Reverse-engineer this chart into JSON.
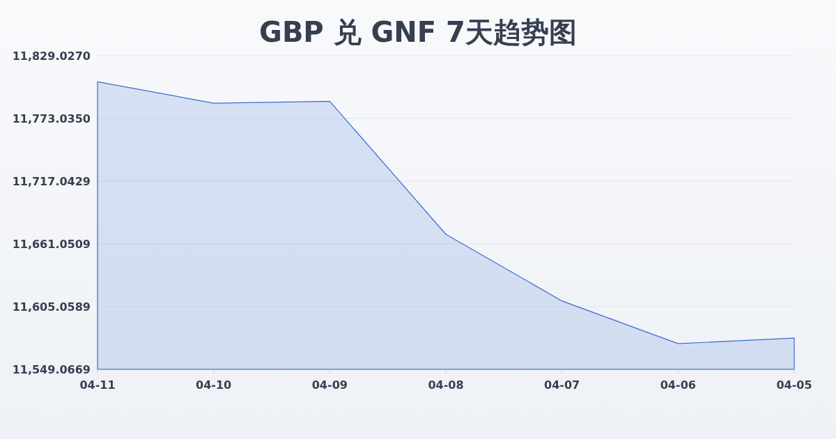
{
  "chart_data": {
    "type": "area",
    "title": "GBP 兑 GNF 7天趋势图",
    "categories": [
      "04-11",
      "04-10",
      "04-09",
      "04-08",
      "04-07",
      "04-06",
      "04-05"
    ],
    "series": [
      {
        "color": "#3a6ad4",
        "values": [
          11805.8,
          11786.7,
          11788.4,
          11669.6,
          11610.1,
          11572.0,
          11577.0
        ]
      }
    ],
    "ylim": [
      11549.0669,
      11829.027
    ],
    "yticks": [
      {
        "value": 11549.0669,
        "label": "11,549.0669"
      },
      {
        "value": 11605.0589,
        "label": "11,605.0589"
      },
      {
        "value": 11661.0509,
        "label": "11,661.0509"
      },
      {
        "value": 11717.0429,
        "label": "11,717.0429"
      },
      {
        "value": 11773.035,
        "label": "11,773.0350"
      },
      {
        "value": 11829.027,
        "label": "11,829.0270"
      }
    ],
    "grid": "y"
  }
}
